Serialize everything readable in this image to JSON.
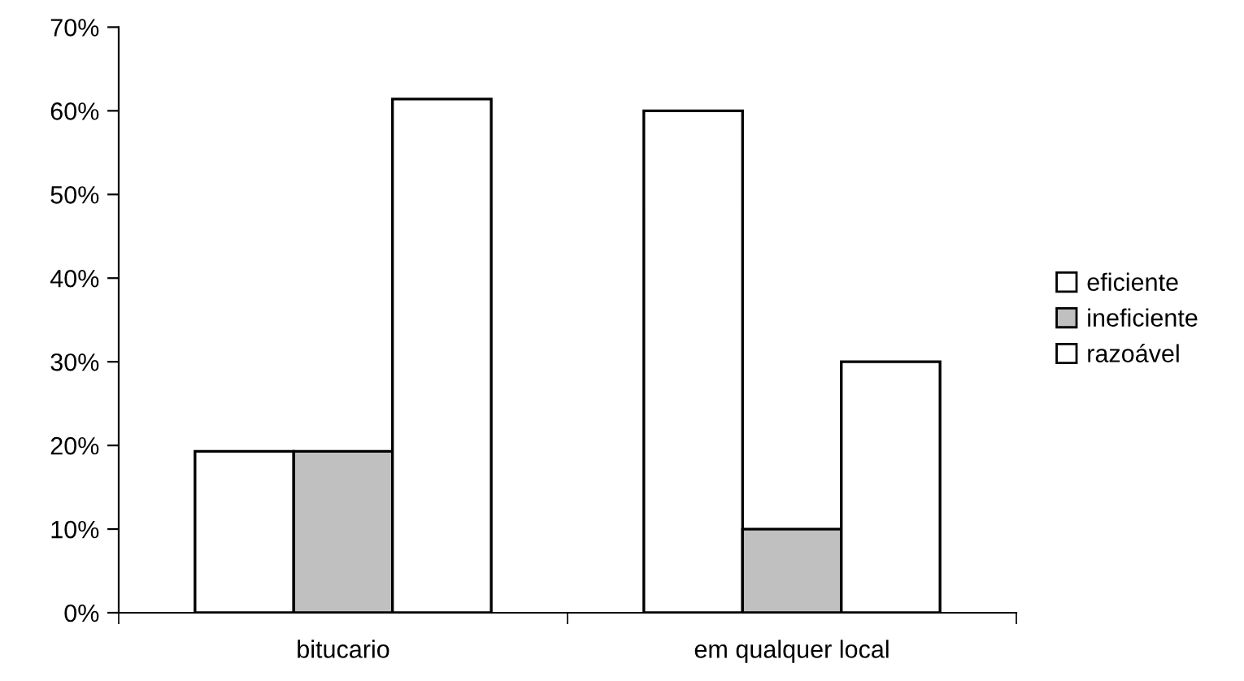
{
  "chart_data": {
    "type": "bar",
    "categories": [
      "bitucario",
      "em qualquer local"
    ],
    "series": [
      {
        "name": "eficiente",
        "color": "#ffffff",
        "values": [
          19.3,
          60
        ]
      },
      {
        "name": "ineficiente",
        "color": "#c0c0c0",
        "values": [
          19.3,
          10
        ]
      },
      {
        "name": "razoável",
        "color": "#ffffff",
        "values": [
          61.4,
          30
        ]
      }
    ],
    "ylim": [
      0,
      70
    ],
    "yticks": [
      {
        "value": 0,
        "label": "0%"
      },
      {
        "value": 10,
        "label": "10%"
      },
      {
        "value": 20,
        "label": "20%"
      },
      {
        "value": 30,
        "label": "30%"
      },
      {
        "value": 40,
        "label": "40%"
      },
      {
        "value": 50,
        "label": "50%"
      },
      {
        "value": 60,
        "label": "60%"
      },
      {
        "value": 70,
        "label": "70%"
      }
    ],
    "grid": false,
    "legend": "right"
  }
}
